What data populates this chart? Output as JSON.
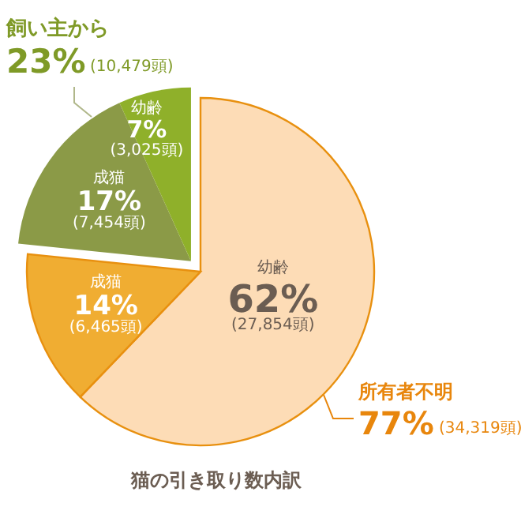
{
  "chart_data": {
    "type": "pie",
    "title": "猫の引き取り数内訳",
    "categories": [
      "幼齢",
      "成猫",
      "成猫",
      "幼齢"
    ],
    "values": [
      27854,
      6465,
      7454,
      3025
    ],
    "value_labels": [
      "62%\n(27,854頭)",
      "14%\n(6,465頭)",
      "17%\n(7,454頭)",
      "7%\n(3,025頭)"
    ],
    "colors": [
      "#fddcb6",
      "#f0ad32",
      "#8b9a47",
      "#8fb02a"
    ],
    "annotations": [
      "所有者不明",
      "77%",
      "(34,319頭)",
      "飼い主から",
      "23%",
      "(10,479頭)"
    ]
  }
}
